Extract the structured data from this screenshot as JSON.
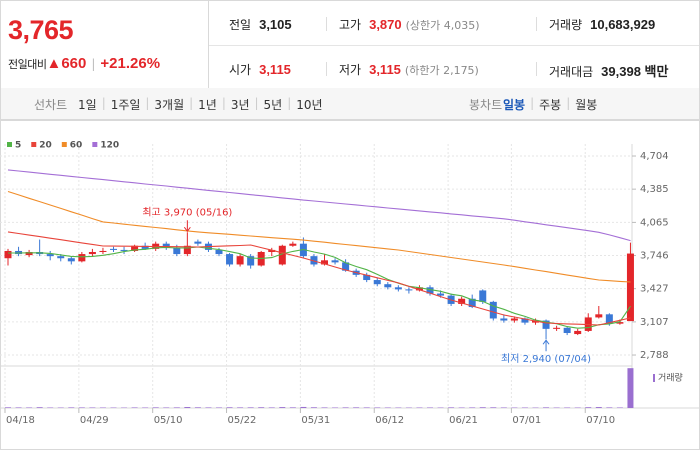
{
  "header": {
    "price": "3,765",
    "change_label": "전일대비",
    "change": "▲660",
    "change_rate": "+21.26%",
    "rows": [
      [
        {
          "label": "전일",
          "value": "3,105"
        },
        {
          "label": "고가",
          "value": "3,870",
          "note": "(상한가 4,035)"
        },
        {
          "label": "거래량",
          "value": "10,683,929"
        }
      ],
      [
        {
          "label": "시가",
          "value": "3,115"
        },
        {
          "label": "저가",
          "value": "3,115",
          "note": "(하한가 2,175)"
        },
        {
          "label": "거래대금",
          "value": "39,398 백만"
        }
      ]
    ]
  },
  "toolbar": {
    "line_chart": "선차트",
    "periods": [
      "1일",
      "1주일",
      "3개월",
      "1년",
      "3년",
      "5년",
      "10년"
    ],
    "candle_chart": "봉차트",
    "candle_periods": [
      "일봉",
      "주봉",
      "월봉"
    ]
  },
  "chart_data": {
    "type": "candlestick",
    "categories": [
      "04/18",
      null,
      null,
      null,
      null,
      null,
      null,
      "04/29",
      null,
      null,
      null,
      null,
      null,
      null,
      "05/10",
      null,
      null,
      null,
      null,
      null,
      null,
      "05/22",
      null,
      null,
      null,
      null,
      null,
      null,
      "05/31",
      null,
      null,
      null,
      null,
      null,
      null,
      "06/12",
      null,
      null,
      null,
      null,
      null,
      null,
      "06/21",
      null,
      null,
      null,
      null,
      null,
      "07/01",
      null,
      null,
      null,
      null,
      null,
      null,
      "07/10",
      null,
      null,
      null,
      null
    ],
    "open": [
      3720,
      3790,
      3750,
      3780,
      3760,
      3740,
      3720,
      3690,
      3760,
      3780,
      3810,
      3800,
      3790,
      3840,
      3810,
      3860,
      3820,
      3760,
      3880,
      3860,
      3800,
      3760,
      3660,
      3740,
      3650,
      3780,
      3660,
      3840,
      3860,
      3740,
      3660,
      3700,
      3680,
      3600,
      3560,
      3510,
      3470,
      3440,
      3420,
      3410,
      3440,
      3380,
      3360,
      3280,
      3330,
      3410,
      3300,
      3140,
      3120,
      3140,
      3100,
      3120,
      3040,
      3050,
      2990,
      3020,
      3150,
      3180,
      3090,
      3115
    ],
    "high": [
      3810,
      3830,
      3800,
      3900,
      3790,
      3760,
      3740,
      3780,
      3810,
      3820,
      3830,
      3830,
      3850,
      3870,
      3880,
      3880,
      3850,
      3970,
      3900,
      3880,
      3820,
      3770,
      3760,
      3760,
      3790,
      3820,
      3850,
      3880,
      3920,
      3760,
      3760,
      3720,
      3710,
      3620,
      3580,
      3530,
      3490,
      3460,
      3440,
      3460,
      3460,
      3410,
      3380,
      3350,
      3370,
      3420,
      3310,
      3180,
      3160,
      3150,
      3140,
      3130,
      3070,
      3060,
      3040,
      3190,
      3260,
      3190,
      3130,
      3870
    ],
    "low": [
      3650,
      3740,
      3730,
      3740,
      3700,
      3690,
      3660,
      3680,
      3740,
      3760,
      3780,
      3760,
      3780,
      3800,
      3790,
      3800,
      3740,
      3740,
      3840,
      3780,
      3740,
      3640,
      3640,
      3620,
      3640,
      3740,
      3650,
      3830,
      3720,
      3640,
      3650,
      3660,
      3590,
      3540,
      3490,
      3450,
      3420,
      3400,
      3380,
      3400,
      3360,
      3340,
      3260,
      3260,
      3240,
      3280,
      3120,
      3100,
      3100,
      3080,
      3080,
      2940,
      3020,
      2980,
      2980,
      3010,
      3140,
      3070,
      3080,
      3115
    ],
    "close": [
      3790,
      3760,
      3780,
      3760,
      3740,
      3720,
      3690,
      3760,
      3780,
      3790,
      3800,
      3790,
      3840,
      3810,
      3860,
      3820,
      3760,
      3840,
      3860,
      3800,
      3760,
      3660,
      3740,
      3650,
      3780,
      3800,
      3840,
      3860,
      3740,
      3660,
      3700,
      3680,
      3600,
      3560,
      3510,
      3470,
      3440,
      3420,
      3410,
      3440,
      3380,
      3360,
      3280,
      3330,
      3250,
      3300,
      3140,
      3120,
      3140,
      3100,
      3120,
      3040,
      3050,
      3000,
      3020,
      3150,
      3180,
      3090,
      3105,
      3765
    ],
    "up_color": "#e3262a",
    "down_color": "#3a78d6",
    "series": [
      {
        "name": "5",
        "color": "#52b447",
        "values": [
          3770,
          3770,
          3772,
          3772,
          3766,
          3752,
          3738,
          3734,
          3738,
          3748,
          3764,
          3784,
          3800,
          3806,
          3820,
          3824,
          3818,
          3818,
          3828,
          3816,
          3804,
          3784,
          3764,
          3722,
          3718,
          3726,
          3762,
          3786,
          3804,
          3780,
          3760,
          3728,
          3676,
          3640,
          3610,
          3564,
          3516,
          3480,
          3450,
          3436,
          3418,
          3402,
          3374,
          3358,
          3320,
          3304,
          3260,
          3228,
          3190,
          3160,
          3124,
          3104,
          3090,
          3062,
          3046,
          3052,
          3080,
          3088,
          3109,
          3258
        ]
      },
      {
        "name": "20",
        "color": "#e8443a",
        "values": [
          3973,
          3958,
          3943,
          3928,
          3913,
          3898,
          3883,
          3868,
          3853,
          3838,
          3837,
          3836,
          3835,
          3834,
          3833,
          3832,
          3831,
          3830,
          3828,
          3832,
          3836,
          3840,
          3843,
          3847,
          3822,
          3797,
          3772,
          3747,
          3722,
          3693,
          3665,
          3636,
          3607,
          3582,
          3557,
          3532,
          3507,
          3482,
          3449,
          3416,
          3384,
          3351,
          3318,
          3289,
          3260,
          3231,
          3202,
          3173,
          3154,
          3135,
          3115,
          3096,
          3092,
          3088,
          3085,
          3081,
          3077,
          3100,
          3122,
          3145
        ]
      },
      {
        "name": "60",
        "color": "#f08c28",
        "values": [
          4362,
          4330,
          4297,
          4265,
          4232,
          4200,
          4167,
          4135,
          4102,
          4070,
          4059,
          4048,
          4037,
          4026,
          4016,
          4005,
          3994,
          3983,
          3973,
          3965,
          3957,
          3950,
          3942,
          3934,
          3926,
          3918,
          3911,
          3903,
          3895,
          3884,
          3874,
          3863,
          3852,
          3842,
          3831,
          3820,
          3810,
          3799,
          3785,
          3770,
          3756,
          3741,
          3727,
          3713,
          3698,
          3684,
          3669,
          3655,
          3639,
          3623,
          3607,
          3591,
          3575,
          3558,
          3542,
          3526,
          3510,
          3504,
          3497,
          3491
        ]
      },
      {
        "name": "120",
        "color": "#a46fd6",
        "values": [
          4570,
          4560,
          4549,
          4539,
          4528,
          4518,
          4508,
          4497,
          4487,
          4477,
          4466,
          4456,
          4446,
          4435,
          4425,
          4415,
          4404,
          4394,
          4384,
          4373,
          4363,
          4353,
          4342,
          4332,
          4322,
          4311,
          4301,
          4291,
          4280,
          4271,
          4261,
          4252,
          4242,
          4233,
          4223,
          4214,
          4204,
          4195,
          4185,
          4176,
          4166,
          4157,
          4147,
          4138,
          4128,
          4119,
          4109,
          4100,
          4086,
          4071,
          4057,
          4042,
          4028,
          4014,
          3999,
          3985,
          3970,
          3945,
          3918,
          3890
        ]
      }
    ],
    "high_label": "최고 3,970 (05/16)",
    "low_label": "최저 2,940 (07/04)",
    "ylim": [
      2692,
      4762
    ],
    "yticks": [
      {
        "value": 2788,
        "label": "2,788"
      },
      {
        "value": 3107,
        "label": "3,107"
      },
      {
        "value": 3427,
        "label": "3,427"
      },
      {
        "value": 3746,
        "label": "3,746"
      },
      {
        "value": 4065,
        "label": "4,065"
      },
      {
        "value": 4385,
        "label": "4,385"
      },
      {
        "value": 4704,
        "label": "4,704"
      }
    ],
    "grid": true,
    "volume_name": "거래량",
    "volume_color": "#9a6fd0",
    "volume": [
      180000,
      150000,
      140000,
      210000,
      130000,
      120000,
      160000,
      150000,
      140000,
      130000,
      120000,
      110000,
      150000,
      130000,
      170000,
      140000,
      160000,
      260000,
      180000,
      150000,
      140000,
      190000,
      160000,
      170000,
      200000,
      150000,
      240000,
      170000,
      280000,
      190000,
      150000,
      130000,
      160000,
      170000,
      150000,
      140000,
      130000,
      120000,
      110000,
      130000,
      140000,
      120000,
      170000,
      130000,
      150000,
      200000,
      180000,
      140000,
      120000,
      130000,
      110000,
      170000,
      120000,
      130000,
      120000,
      210000,
      250000,
      160000,
      140000,
      10683929
    ],
    "volume_ylim": [
      0,
      11000000
    ]
  }
}
